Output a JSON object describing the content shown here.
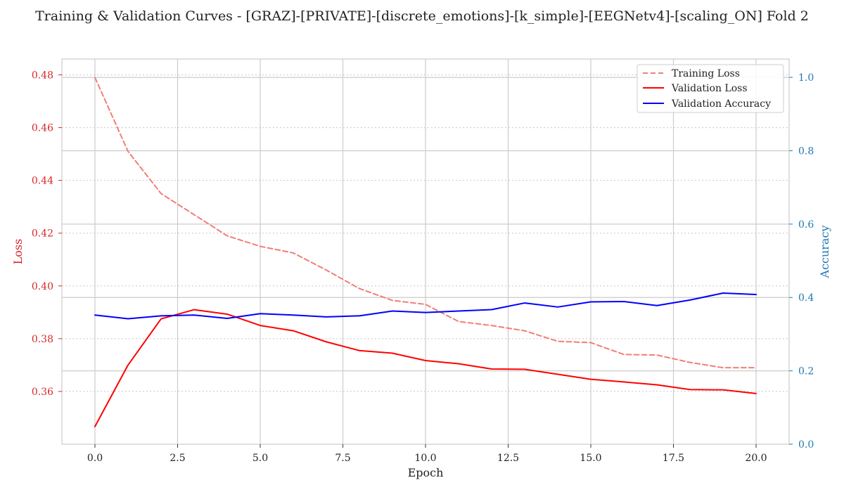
{
  "chart_data": {
    "type": "line",
    "title": "Training & Validation Curves - [GRAZ]-[PRIVATE]-[discrete_emotions]-[k_simple]-[EEGNetv4]-[scaling_ON] Fold 2",
    "xlabel": "Epoch",
    "ylabel_left": "Loss",
    "ylabel_right": "Accuracy",
    "xlim": [
      -1,
      21
    ],
    "ylim_left": [
      0.34,
      0.486
    ],
    "ylim_right": [
      0.0,
      1.05
    ],
    "x_ticks": [
      0.0,
      2.5,
      5.0,
      7.5,
      10.0,
      12.5,
      15.0,
      17.5,
      20.0
    ],
    "x_tick_labels": [
      "0.0",
      "2.5",
      "5.0",
      "7.5",
      "10.0",
      "12.5",
      "15.0",
      "17.5",
      "20.0"
    ],
    "y_left_ticks": [
      0.36,
      0.38,
      0.4,
      0.42,
      0.44,
      0.46,
      0.48
    ],
    "y_left_tick_labels": [
      "0.36",
      "0.38",
      "0.40",
      "0.42",
      "0.44",
      "0.46",
      "0.48"
    ],
    "y_right_ticks": [
      0.0,
      0.2,
      0.4,
      0.6,
      0.8,
      1.0
    ],
    "y_right_tick_labels": [
      "0.0",
      "0.2",
      "0.4",
      "0.6",
      "0.8",
      "1.0"
    ],
    "grid": true,
    "legend_position": "upper right",
    "x": [
      0,
      1,
      2,
      3,
      4,
      5,
      6,
      7,
      8,
      9,
      10,
      11,
      12,
      13,
      14,
      15,
      16,
      17,
      18,
      19,
      20
    ],
    "series": [
      {
        "name": "Training Loss",
        "axis": "left",
        "color": "#f07f78",
        "dash": "dashed",
        "values": [
          0.479,
          0.451,
          0.435,
          0.427,
          0.419,
          0.415,
          0.4125,
          0.406,
          0.399,
          0.3945,
          0.393,
          0.3865,
          0.385,
          0.383,
          0.379,
          0.3785,
          0.374,
          0.3738,
          0.371,
          0.369,
          0.369
        ]
      },
      {
        "name": "Validation Loss",
        "axis": "left",
        "color": "#ff0000",
        "dash": "solid",
        "values": [
          0.3467,
          0.37,
          0.3875,
          0.391,
          0.3893,
          0.385,
          0.383,
          0.3788,
          0.3755,
          0.3745,
          0.3717,
          0.3705,
          0.3685,
          0.3684,
          0.3665,
          0.3646,
          0.3636,
          0.3625,
          0.3607,
          0.3606,
          0.3592
        ]
      },
      {
        "name": "Validation Accuracy",
        "axis": "right",
        "color": "#0000ff",
        "dash": "solid",
        "values": [
          0.352,
          0.342,
          0.35,
          0.352,
          0.343,
          0.356,
          0.352,
          0.347,
          0.35,
          0.363,
          0.359,
          0.363,
          0.367,
          0.385,
          0.374,
          0.388,
          0.389,
          0.378,
          0.393,
          0.412,
          0.408
        ]
      }
    ]
  }
}
